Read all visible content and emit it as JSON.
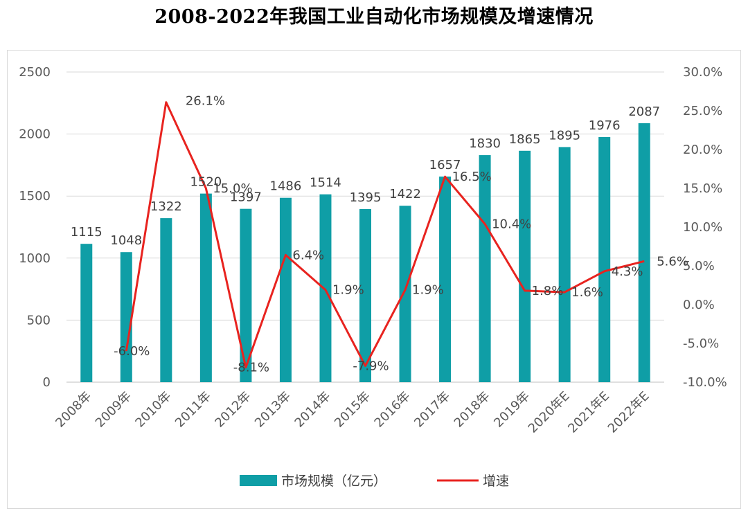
{
  "chart_data": {
    "type": "bar",
    "title": "2008-2022年我国工业自动化市场规模及增速情况",
    "categories": [
      "2008年",
      "2009年",
      "2010年",
      "2011年",
      "2012年",
      "2013年",
      "2014年",
      "2015年",
      "2016年",
      "2017年",
      "2018年",
      "2019年",
      "2020年E",
      "2021年E",
      "2022年E"
    ],
    "series": [
      {
        "name": "市场规模（亿元）",
        "type": "bar",
        "axis": "left",
        "color": "#0f9ea6",
        "values": [
          1115,
          1048,
          1322,
          1520,
          1397,
          1486,
          1514,
          1395,
          1422,
          1657,
          1830,
          1865,
          1895,
          1976,
          2087
        ],
        "labels": [
          "1115",
          "1048",
          "1322",
          "1520",
          "1397",
          "1486",
          "1514",
          "1395",
          "1422",
          "1657",
          "1830",
          "1865",
          "1895",
          "1976",
          "2087"
        ]
      },
      {
        "name": "增速",
        "type": "line",
        "axis": "right",
        "color": "#e8231f",
        "values": [
          null,
          -6.0,
          26.1,
          15.0,
          -8.1,
          6.4,
          1.9,
          -7.9,
          1.9,
          16.5,
          10.4,
          1.8,
          1.6,
          4.3,
          5.6
        ],
        "labels": [
          "",
          "-6.0%",
          "26.1%",
          "15.0%",
          "-8.1%",
          "6.4%",
          "1.9%",
          "-7.9%",
          "1.9%",
          "16.5%",
          "10.4%",
          "1.8%",
          "1.6%",
          "4.3%",
          "5.6%"
        ]
      }
    ],
    "left_axis": {
      "ylim": [
        0,
        2500
      ],
      "ticks": [
        0,
        500,
        1000,
        1500,
        2000,
        2500
      ],
      "tick_labels": [
        "0",
        "500",
        "1000",
        "1500",
        "2000",
        "2500"
      ]
    },
    "right_axis": {
      "ylim": [
        -10,
        30
      ],
      "ticks": [
        -10,
        -5,
        0,
        5,
        10,
        15,
        20,
        25,
        30
      ],
      "tick_labels": [
        "-10.0%",
        "-5.0%",
        "0.0%",
        "5.0%",
        "10.0%",
        "15.0%",
        "20.0%",
        "25.0%",
        "30.0%"
      ]
    },
    "grid": true,
    "legend_position": "bottom-center"
  }
}
